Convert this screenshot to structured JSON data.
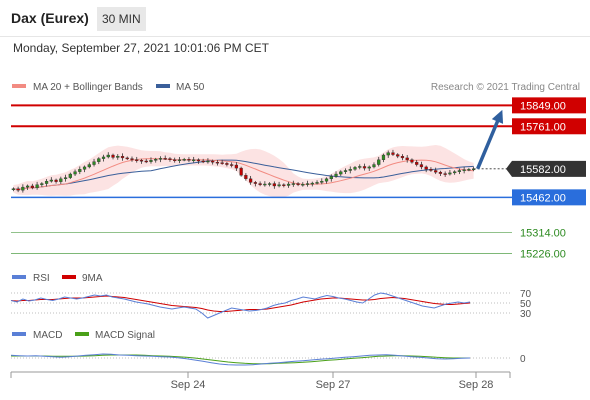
{
  "header": {
    "instrument": "Dax (Eurex)",
    "timeframe": "30 MIN",
    "datetime": "Monday, September 27, 2021 10:01:06 PM CET"
  },
  "legend": {
    "ma20_label": "MA 20 + Bollinger Bands",
    "ma50_label": "MA 50",
    "copyright": "Research © 2021 Trading Central",
    "rsi_label": "RSI",
    "rsi_ma_label": "9MA",
    "macd_label": "MACD",
    "macd_signal_label": "MACD Signal"
  },
  "colors": {
    "ma20": "#f28b82",
    "ma50": "#3a5f9a",
    "bollinger_fill": "#fbdada",
    "resistance": "#d00000",
    "support": "#2a6edc",
    "target": "#2e8b22",
    "arrow": "#2f5f9e",
    "rsi": "#5a7fd6",
    "rsi_ma": "#d00000",
    "macd": "#5a7fd6",
    "macd_signal": "#4aa018",
    "candle_up": "#2e8b22",
    "candle_down": "#c00000"
  },
  "chart_data": [
    {
      "type": "candlestick",
      "title": "",
      "x_ticks": [
        "Sep 24",
        "Sep 27",
        "Sep 28"
      ],
      "ylim": [
        15190,
        15880
      ],
      "last_price": 15582.0,
      "levels": [
        {
          "value": 15849.0,
          "label": "15849.00",
          "kind": "resistance"
        },
        {
          "value": 15761.0,
          "label": "15761.00",
          "kind": "resistance"
        },
        {
          "value": 15582.0,
          "label": "15582.00",
          "kind": "last"
        },
        {
          "value": 15462.0,
          "label": "15462.00",
          "kind": "support"
        },
        {
          "value": 15314.0,
          "label": "15314.00",
          "kind": "target"
        },
        {
          "value": 15226.0,
          "label": "15226.00",
          "kind": "target"
        }
      ],
      "series": [
        {
          "name": "MA 20 + Bollinger Bands",
          "role": "ma20"
        },
        {
          "name": "MA 50",
          "role": "ma50"
        }
      ],
      "close": [
        15498,
        15492,
        15505,
        15510,
        15502,
        15515,
        15520,
        15530,
        15535,
        15528,
        15540,
        15545,
        15560,
        15570,
        15580,
        15590,
        15600,
        15612,
        15625,
        15632,
        15640,
        15630,
        15635,
        15628,
        15625,
        15620,
        15618,
        15615,
        15612,
        15618,
        15622,
        15626,
        15625,
        15620,
        15618,
        15620,
        15622,
        15618,
        15620,
        15615,
        15612,
        15615,
        15610,
        15608,
        15605,
        15600,
        15598,
        15585,
        15555,
        15540,
        15525,
        15520,
        15515,
        15518,
        15520,
        15510,
        15515,
        15512,
        15518,
        15520,
        15515,
        15517,
        15520,
        15522,
        15525,
        15530,
        15540,
        15550,
        15560,
        15570,
        15575,
        15580,
        15588,
        15592,
        15585,
        15590,
        15600,
        15620,
        15640,
        15650,
        15642,
        15635,
        15628,
        15620,
        15610,
        15600,
        15590,
        15580,
        15575,
        15568,
        15562,
        15560,
        15565,
        15570,
        15575,
        15578,
        15580,
        15582
      ]
    },
    {
      "type": "line",
      "title": "",
      "series": [
        {
          "name": "RSI"
        },
        {
          "name": "9MA"
        }
      ],
      "levels": [
        70,
        50,
        30
      ],
      "ylim": [
        20,
        80
      ],
      "rsi": [
        55,
        52,
        58,
        54,
        56,
        60,
        57,
        55,
        58,
        62,
        60,
        58,
        60,
        63,
        66,
        64,
        66,
        62,
        60,
        58,
        55,
        52,
        50,
        48,
        45,
        42,
        40,
        38,
        40,
        42,
        40,
        38,
        30,
        20,
        25,
        30,
        35,
        40,
        38,
        36,
        34,
        35,
        37,
        40,
        45,
        48,
        50,
        55,
        58,
        62,
        60,
        58,
        62,
        65,
        63,
        60,
        58,
        55,
        52,
        50,
        58,
        66,
        70,
        68,
        64,
        60,
        56,
        52,
        48,
        44,
        42,
        40,
        44,
        48,
        50,
        52,
        50,
        52
      ],
      "rsi_ma": [
        55,
        54,
        55,
        55,
        56,
        57,
        57,
        57,
        58,
        59,
        60,
        60,
        60,
        61,
        62,
        63,
        64,
        63,
        62,
        61,
        59,
        57,
        55,
        53,
        51,
        49,
        47,
        45,
        44,
        43,
        42,
        41,
        39,
        36,
        34,
        33,
        33,
        34,
        35,
        36,
        37,
        37,
        37,
        38,
        40,
        42,
        44,
        46,
        49,
        52,
        54,
        56,
        58,
        59,
        60,
        60,
        59,
        58,
        57,
        56,
        56,
        57,
        59,
        60,
        61,
        60,
        59,
        57,
        55,
        53,
        51,
        49,
        48,
        47,
        47,
        48,
        49,
        50
      ]
    },
    {
      "type": "line",
      "title": "",
      "series": [
        {
          "name": "MACD"
        },
        {
          "name": "MACD Signal"
        }
      ],
      "levels": [
        0
      ],
      "ylim": [
        -42,
        42
      ],
      "macd": [
        8,
        7,
        6,
        7,
        5,
        4,
        2,
        4,
        6,
        8,
        10,
        12,
        11,
        9,
        8,
        7,
        6,
        5,
        4,
        3,
        1,
        -2,
        -6,
        -10,
        -14,
        -18,
        -20,
        -21,
        -21,
        -20,
        -18,
        -16,
        -14,
        -12,
        -10,
        -8,
        -6,
        -4,
        -2,
        0,
        2,
        4,
        6,
        8,
        9,
        10,
        8,
        6,
        4,
        2,
        0,
        -2,
        -3,
        -2,
        -1,
        0
      ],
      "signal": [
        6,
        6,
        6,
        6,
        6,
        5,
        5,
        5,
        5,
        6,
        7,
        8,
        9,
        9,
        9,
        9,
        8,
        7,
        6,
        5,
        4,
        2,
        0,
        -3,
        -6,
        -9,
        -12,
        -14,
        -16,
        -17,
        -17,
        -17,
        -16,
        -15,
        -14,
        -13,
        -11,
        -9,
        -7,
        -5,
        -3,
        -1,
        1,
        3,
        5,
        6,
        7,
        7,
        6,
        5,
        4,
        2,
        1,
        0,
        0,
        0
      ]
    }
  ]
}
